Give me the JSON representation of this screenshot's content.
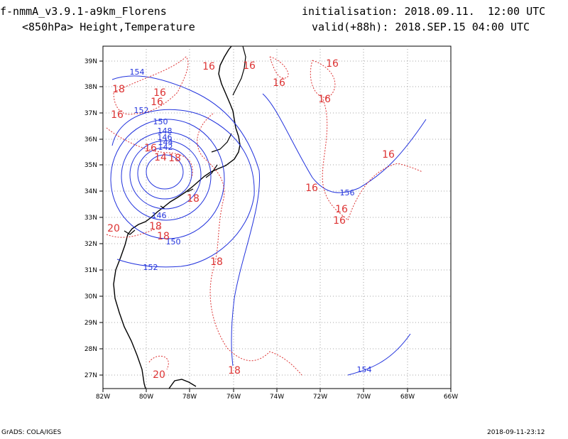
{
  "header": {
    "model": "f-nmmA_v3.9.1-a9km_Florens",
    "level": "<850hPa> Height,Temperature",
    "init": "initialisation: 2018.09.11.  12:00 UTC",
    "valid": "valid(+88h): 2018.SEP.15 04:00 UTC"
  },
  "footer": {
    "software": "GrADS: COLA/IGES",
    "timestamp": "2018-09-11-23:12"
  },
  "axes": {
    "lon_ticks": [
      "82W",
      "80W",
      "78W",
      "76W",
      "74W",
      "72W",
      "70W",
      "68W",
      "66W"
    ],
    "lat_ticks": [
      "39N",
      "38N",
      "37N",
      "36N",
      "35N",
      "34N",
      "33N",
      "32N",
      "31N",
      "30N",
      "29N",
      "28N",
      "27N"
    ]
  },
  "colors": {
    "height_contour": "#2233dd",
    "temperature_contour": "#dd3333",
    "coastline": "#000000",
    "grid": "#888888"
  },
  "height_labels": [
    "154",
    "152",
    "150",
    "148",
    "146",
    "144",
    "142",
    "146",
    "150",
    "152",
    "156",
    "154"
  ],
  "temperature_labels": [
    "16",
    "16",
    "16",
    "16",
    "18",
    "16",
    "16",
    "16",
    "16",
    "14",
    "18",
    "16",
    "18",
    "16",
    "16",
    "20",
    "18",
    "18",
    "18",
    "20",
    "18"
  ]
}
